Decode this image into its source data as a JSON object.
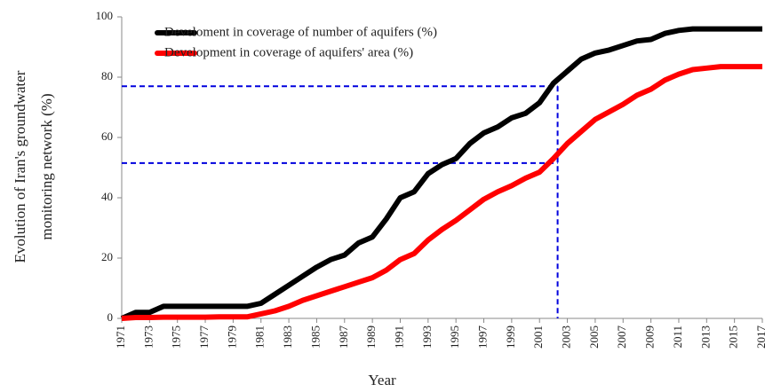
{
  "chart_data": {
    "type": "line",
    "xlabel": "Year",
    "ylabel": [
      "Evolution of Iran's groundwater",
      "monitoring network (%)"
    ],
    "x": [
      1971,
      1972,
      1973,
      1974,
      1975,
      1976,
      1977,
      1978,
      1979,
      1980,
      1981,
      1982,
      1983,
      1984,
      1985,
      1986,
      1987,
      1988,
      1989,
      1990,
      1991,
      1992,
      1993,
      1994,
      1995,
      1996,
      1997,
      1998,
      1999,
      2000,
      2001,
      2002,
      2003,
      2004,
      2005,
      2006,
      2007,
      2008,
      2009,
      2010,
      2011,
      2012,
      2013,
      2014,
      2015,
      2016,
      2017
    ],
    "series": [
      {
        "name": "Develoment in coverage of number of aquifers (%)",
        "color": "#000000",
        "values": [
          0,
          2,
          2,
          4,
          4,
          4,
          4,
          4,
          4,
          4,
          5,
          8,
          11,
          14,
          17,
          19.5,
          21,
          25,
          27,
          33,
          40,
          42,
          48,
          51,
          53,
          58,
          61.5,
          63.5,
          66.5,
          68,
          71.5,
          78,
          82,
          86,
          88,
          89,
          90.5,
          92,
          92.5,
          94.5,
          95.5,
          96,
          96,
          96,
          96,
          96,
          96
        ]
      },
      {
        "name": "Development in coverage of aquifers' area (%)",
        "color": "#ff0000",
        "values": [
          0,
          0.3,
          0.3,
          0.4,
          0.4,
          0.4,
          0.4,
          0.5,
          0.5,
          0.5,
          1.5,
          2.5,
          4,
          6,
          7.5,
          9,
          10.5,
          12,
          13.5,
          16,
          19.5,
          21.5,
          26,
          29.5,
          32.5,
          36,
          39.5,
          42,
          44,
          46.5,
          48.5,
          53,
          58,
          62,
          66,
          68.5,
          71,
          74,
          76,
          79,
          81,
          82.5,
          83,
          83.5,
          83.5,
          83.5,
          83.5
        ]
      }
    ],
    "xlim": [
      1971,
      2017
    ],
    "xticks": [
      1971,
      1973,
      1975,
      1977,
      1979,
      1981,
      1983,
      1985,
      1987,
      1989,
      1991,
      1993,
      1995,
      1997,
      1999,
      2001,
      2003,
      2005,
      2007,
      2009,
      2011,
      2013,
      2015,
      2017
    ],
    "ylim": [
      0,
      100
    ],
    "yticks": [
      0,
      20,
      40,
      60,
      80,
      100
    ],
    "reference_lines": {
      "x": 2002.3,
      "y": [
        77,
        51.5
      ],
      "color": "#0000dd"
    },
    "legend": "upper left"
  }
}
